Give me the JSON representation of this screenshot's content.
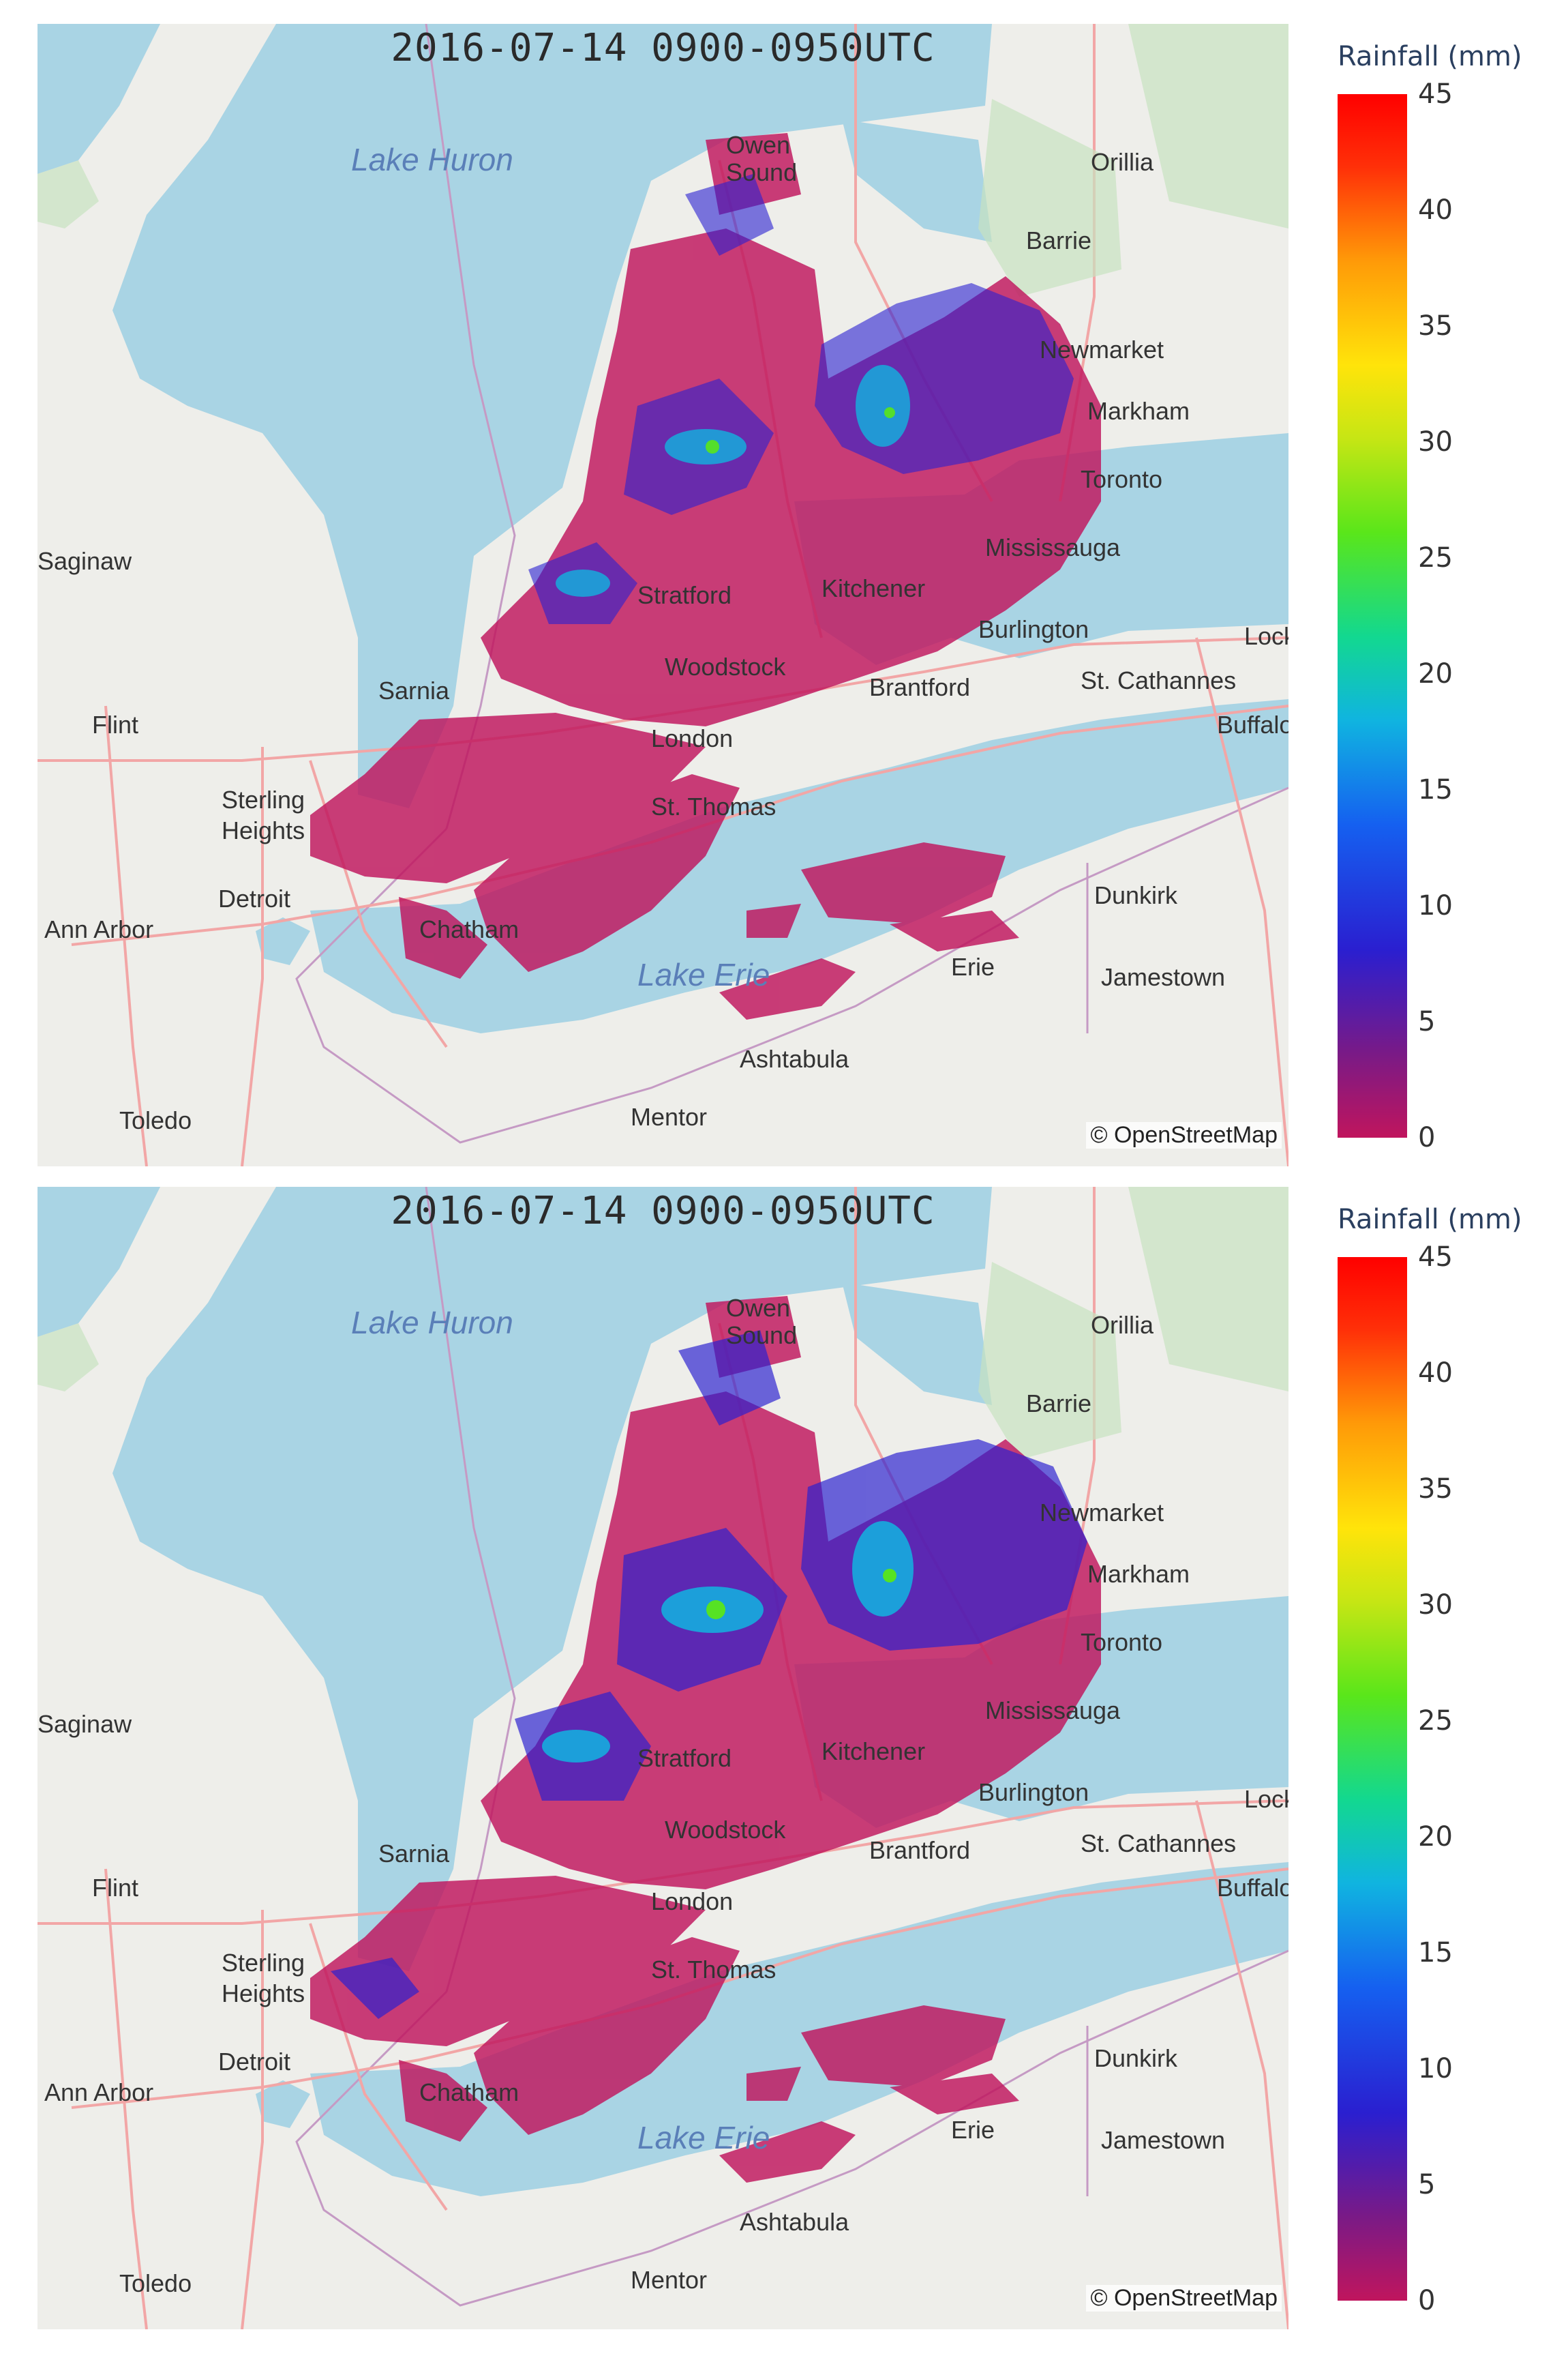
{
  "panels": [
    {
      "title": "2016-07-14 0900-0950UTC",
      "attribution": "© OpenStreetMap"
    },
    {
      "title": "2016-07-14 0900-0950UTC",
      "attribution": "© OpenStreetMap"
    }
  ],
  "colorbar": {
    "title": "Rainfall (mm)",
    "ticks": [
      "45",
      "40",
      "35",
      "30",
      "25",
      "20",
      "15",
      "10",
      "5",
      "0"
    ],
    "range": [
      0,
      45
    ],
    "colors": [
      "#c0155d",
      "#7a1a86",
      "#2a1fd0",
      "#1560f0",
      "#10b4e0",
      "#12d890",
      "#5ae61a",
      "#c6e614",
      "#ffe40a",
      "#ff9a08",
      "#ff3008",
      "#ff0000"
    ]
  },
  "map": {
    "lakes": [
      "Lake Huron",
      "Lake Erie"
    ],
    "places": [
      "Owen Sound",
      "Orillia",
      "Barrie",
      "Newmarket",
      "Markham",
      "Toronto",
      "Mississauga",
      "Burlington",
      "St. Cathannes",
      "Lock",
      "Buffalo",
      "Brantford",
      "Woodstock",
      "Kitchener",
      "Stratford",
      "London",
      "St. Thomas",
      "Sarnia",
      "Flint",
      "Sterling Heights",
      "Detroit",
      "Ann Arbor",
      "Chatham",
      "Dunkirk",
      "Erie",
      "Jamestown",
      "Ashtabula",
      "Mentor",
      "Toledo",
      "Saginaw"
    ],
    "colors": {
      "water": "#a9d4e4",
      "land": "#eeeeea",
      "road": "#f2a6a6",
      "rain_low": "#c0155d"
    }
  }
}
